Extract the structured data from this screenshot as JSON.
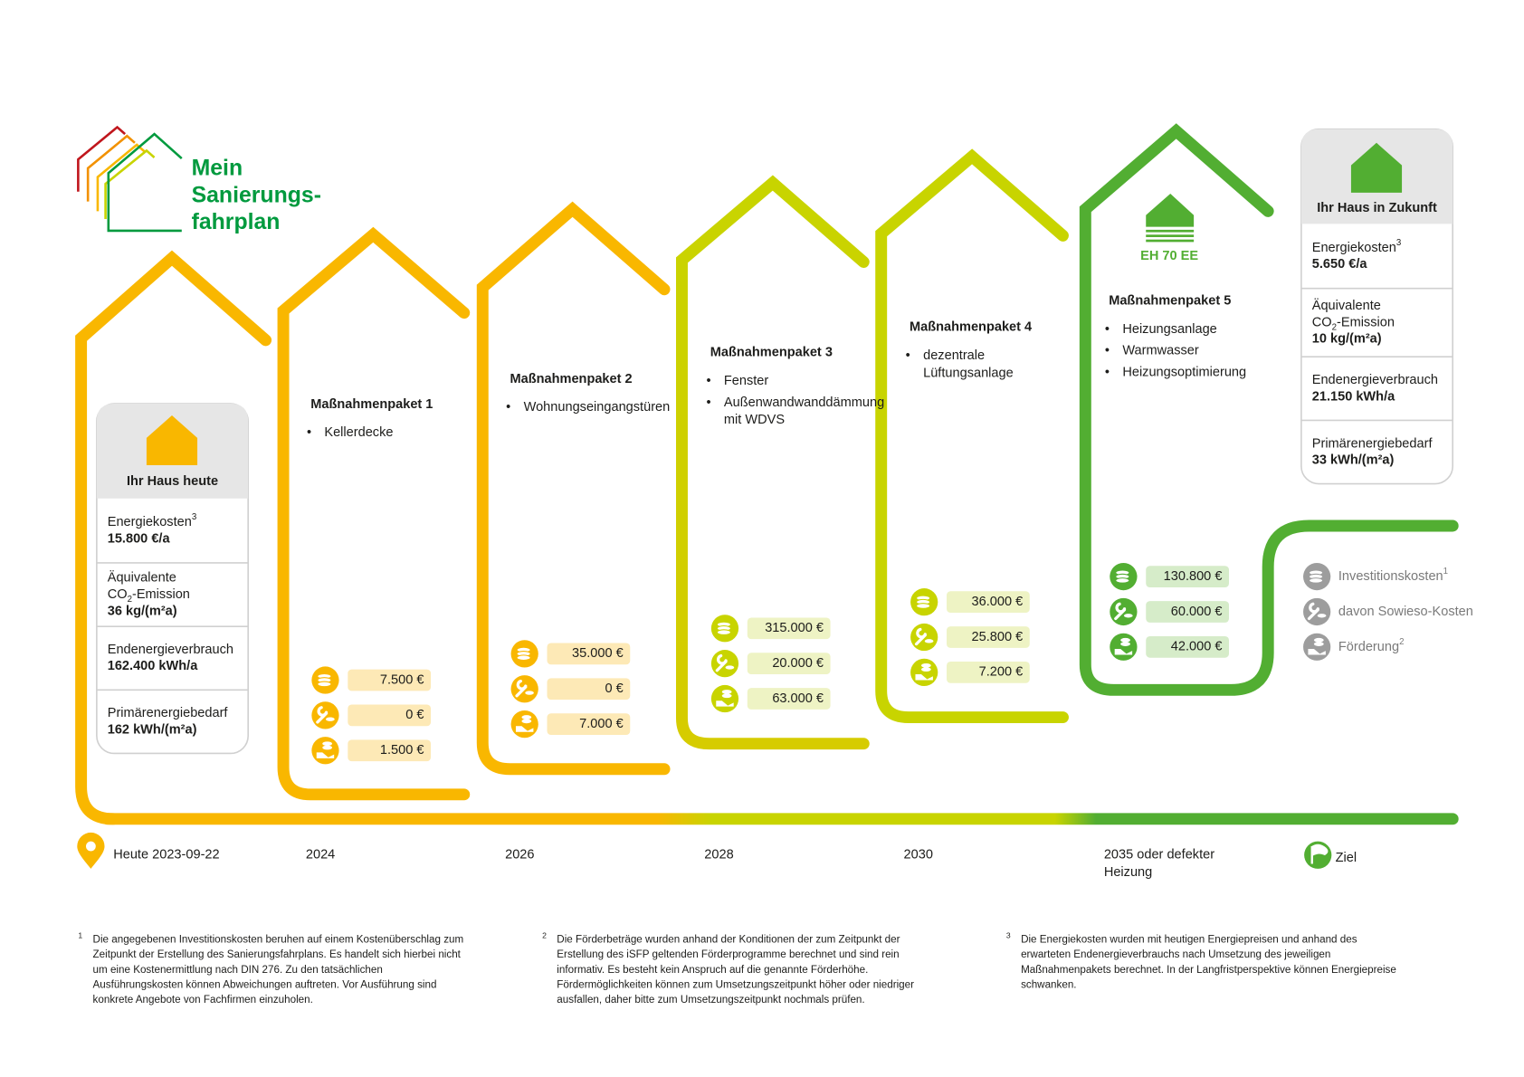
{
  "logo": {
    "lines": [
      "Mein",
      "Sanierungs-",
      "fahrplan"
    ]
  },
  "today": {
    "title": "Ihr Haus heute",
    "rows": [
      {
        "label": [
          [
            {
              "text": "Energiekosten"
            },
            {
              "text": "3",
              "shift": "sup"
            }
          ]
        ],
        "value": "15.800 €/a"
      },
      {
        "label": [
          [
            {
              "text": "Äquivalente"
            }
          ],
          [
            {
              "text": "CO"
            },
            {
              "text": "2",
              "shift": "sub"
            },
            {
              "text": "-Emission"
            }
          ]
        ],
        "value": "36 kg/(m²a)"
      },
      {
        "label": [
          [
            {
              "text": "Endenergieverbrauch"
            }
          ]
        ],
        "value": "162.400 kWh/a"
      },
      {
        "label": [
          [
            {
              "text": "Primärenergiebedarf"
            }
          ]
        ],
        "value": "162 kWh/(m²a)"
      }
    ]
  },
  "future": {
    "title": "Ihr Haus in Zukunft",
    "rows": [
      {
        "label": [
          [
            {
              "text": "Energiekosten"
            },
            {
              "text": "3",
              "shift": "sup"
            }
          ]
        ],
        "value": "5.650 €/a"
      },
      {
        "label": [
          [
            {
              "text": "Äquivalente"
            }
          ],
          [
            {
              "text": "CO"
            },
            {
              "text": "2",
              "shift": "sub"
            },
            {
              "text": "-Emission"
            }
          ]
        ],
        "value": "10 kg/(m²a)"
      },
      {
        "label": [
          [
            {
              "text": "Endenergieverbrauch"
            }
          ]
        ],
        "value": "21.150 kWh/a"
      },
      {
        "label": [
          [
            {
              "text": "Primärenergiebedarf"
            }
          ]
        ],
        "value": "33 kWh/(m²a)"
      }
    ]
  },
  "packages": [
    {
      "title": "Maßnahmenpaket 1",
      "bullets": [
        [
          "Kellerdecke"
        ]
      ],
      "costs": [
        "7.500 €",
        "0 €",
        "1.500 €"
      ]
    },
    {
      "title": "Maßnahmenpaket 2",
      "bullets": [
        [
          "Wohnungseingangstüren"
        ]
      ],
      "costs": [
        "35.000 €",
        "0 €",
        "7.000 €"
      ]
    },
    {
      "title": "Maßnahmenpaket 3",
      "bullets": [
        [
          "Fenster"
        ],
        [
          "Außenwandwanddämmung",
          "mit WDVS"
        ]
      ],
      "costs": [
        "315.000 €",
        "20.000 €",
        "63.000 €"
      ]
    },
    {
      "title": "Maßnahmenpaket 4",
      "bullets": [
        [
          "dezentrale",
          "Lüftungsanlage"
        ]
      ],
      "costs": [
        "36.000 €",
        "25.800 €",
        "7.200 €"
      ]
    },
    {
      "title": "Maßnahmenpaket 5",
      "badge": "EH 70 EE",
      "bullets": [
        [
          "Heizungsanlage"
        ],
        [
          "Warmwasser"
        ],
        [
          "Heizungsoptimierung"
        ]
      ],
      "costs": [
        "130.800 €",
        "60.000 €",
        "42.000 €"
      ]
    }
  ],
  "legend": [
    [
      {
        "text": "Investitionskosten"
      },
      {
        "text": "1",
        "shift": "sup"
      }
    ],
    [
      {
        "text": "davon Sowieso-Kosten"
      }
    ],
    [
      {
        "text": "Förderung"
      },
      {
        "text": "2",
        "shift": "sup"
      }
    ]
  ],
  "timeline": [
    [
      "Heute 2023-09-22"
    ],
    [
      "2024"
    ],
    [
      "2026"
    ],
    [
      "2028"
    ],
    [
      "2030"
    ],
    [
      "2035 oder defekter",
      "Heizung"
    ],
    [
      "Ziel"
    ]
  ],
  "footnotes": [
    {
      "marker": "1",
      "lines": [
        "Die angegebenen Investitionskosten beruhen auf einem Kostenüberschlag zum",
        "Zeitpunkt der Erstellung des Sanierungsfahrplans. Es handelt sich hierbei nicht",
        "um eine Kostenermittlung nach DIN 276. Zu den tatsächlichen",
        "Ausführungskosten können Abweichungen auftreten. Vor Ausführung sind",
        "konkrete Angebote von Fachfirmen einzuholen."
      ]
    },
    {
      "marker": "2",
      "lines": [
        "Die Förderbeträge wurden anhand der Konditionen der zum Zeitpunkt der",
        "Erstellung des iSFP geltenden Förderprogramme berechnet und sind rein",
        "informativ. Es besteht kein Anspruch auf die genannte Förderhöhe.",
        "Fördermöglichkeiten können zum Umsetzungszeitpunkt höher oder niedriger",
        "ausfallen, daher bitte zum Umsetzungszeitpunkt nochmals prüfen."
      ]
    },
    {
      "marker": "3",
      "lines": [
        "Die Energiekosten wurden mit heutigen Energiepreisen und anhand des",
        "erwarteten Endenergieverbrauchs nach Umsetzung des jeweiligen",
        "Maßnahmenpakets berechnet. In der Langfristperspektive können Energiepreise",
        "schwanken."
      ]
    }
  ]
}
